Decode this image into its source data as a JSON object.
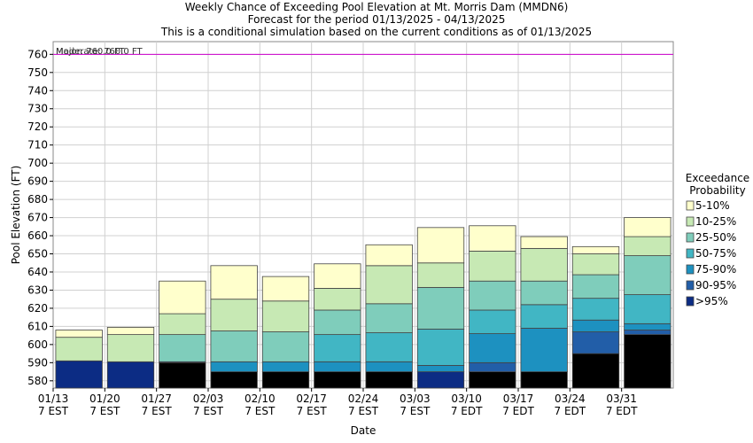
{
  "chart_data": {
    "type": "bar",
    "stacked": true,
    "title": "Weekly Chance of Exceeding Pool Elevation at Mt. Morris Dam (MMDN6)",
    "subtitle_lines": [
      "Forecast for the period 01/13/2025 - 04/13/2025",
      "This is a conditional simulation based on the current conditions as of 01/13/2025"
    ],
    "xlabel": "Date",
    "ylabel": "Pool Elevation (FT)",
    "ylim": [
      576,
      767
    ],
    "yticks": [
      580,
      590,
      600,
      610,
      620,
      630,
      640,
      650,
      660,
      670,
      680,
      690,
      700,
      710,
      720,
      730,
      740,
      750,
      760
    ],
    "grid": true,
    "categories": [
      [
        "01/13",
        "7 EST"
      ],
      [
        "01/20",
        "7 EST"
      ],
      [
        "01/27",
        "7 EST"
      ],
      [
        "02/03",
        "7 EST"
      ],
      [
        "02/10",
        "7 EST"
      ],
      [
        "02/17",
        "7 EST"
      ],
      [
        "02/24",
        "7 EST"
      ],
      [
        "03/03",
        "7 EST"
      ],
      [
        "03/10",
        "7 EDT"
      ],
      [
        "03/17",
        "7 EDT"
      ],
      [
        "03/24",
        "7 EDT"
      ],
      [
        "03/31",
        "7 EDT"
      ]
    ],
    "bars": [
      [
        591,
        591,
        591,
        591,
        591,
        604,
        608
      ],
      [
        590.5,
        590.5,
        590.5,
        590.5,
        590.5,
        605.5,
        609.5
      ],
      [
        590,
        590.5,
        590.5,
        590.5,
        590.5,
        605.5,
        617,
        635
      ],
      [
        585,
        585,
        585,
        590.5,
        590.5,
        607.5,
        625,
        643.5
      ],
      [
        585,
        585,
        585,
        590.5,
        590.5,
        607,
        624,
        637.5
      ],
      [
        585,
        585,
        585,
        590.5,
        605.5,
        619,
        631,
        644.5
      ],
      [
        585,
        585,
        585,
        590.5,
        606.5,
        622.5,
        643.5,
        655
      ],
      [
        585,
        585,
        588.5,
        608.5,
        631.5,
        645,
        664.5
      ],
      [
        585,
        585,
        590,
        606,
        619,
        635,
        651.5,
        665.5
      ],
      [
        585,
        585,
        585,
        609,
        622,
        635,
        653,
        659.5
      ],
      [
        595,
        595,
        607,
        613.5,
        625.5,
        638.5,
        650,
        654
      ],
      [
        605.5,
        605.5,
        608,
        611.5,
        627.5,
        649,
        659.5,
        670
      ]
    ],
    "legend": {
      "title_lines": [
        "Exceedance",
        "Probability"
      ],
      "placement": "right",
      "entries": [
        {
          "label": "5-10%",
          "color": "#ffffcc"
        },
        {
          "label": "10-25%",
          "color": "#c7e9b4"
        },
        {
          "label": "25-50%",
          "color": "#7fcdbb"
        },
        {
          "label": "50-75%",
          "color": "#41b6c4"
        },
        {
          "label": "75-90%",
          "color": "#1d91c0"
        },
        {
          "label": "90-95%",
          "color": "#225ea8"
        },
        {
          "label": ">95%",
          "color": "#0c2c84"
        }
      ]
    },
    "bar_colors_bottom_up": [
      "#0c2c84",
      "#225ea8",
      "#1d91c0",
      "#41b6c4",
      "#7fcdbb",
      "#c7e9b4",
      "#ffffcc"
    ],
    "reference_line": {
      "value": 760,
      "color": "#cc00cc",
      "labels": [
        "Major: 760.0 FT",
        "Moderate: 760.0 FT"
      ]
    }
  }
}
